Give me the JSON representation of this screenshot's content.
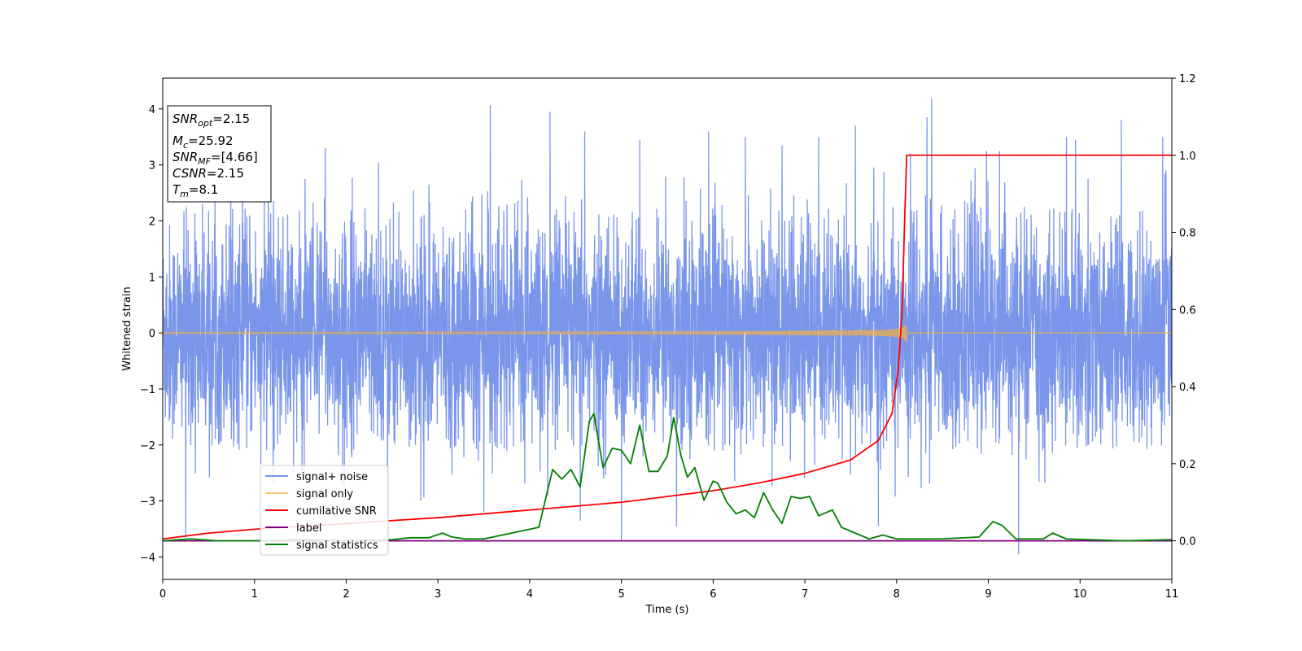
{
  "chart_data": {
    "type": "line",
    "xlabel": "Time (s)",
    "ylabel": "Whitened strain",
    "xlim": [
      0,
      11
    ],
    "ylim": [
      -4.4,
      4.55
    ],
    "ylim_right": [
      -0.1,
      1.2
    ],
    "x_ticks": [
      "0",
      "1",
      "2",
      "3",
      "4",
      "5",
      "6",
      "7",
      "8",
      "9",
      "10",
      "11"
    ],
    "y_ticks": [
      "−4",
      "−3",
      "−2",
      "−1",
      "0",
      "1",
      "2",
      "3",
      "4"
    ],
    "y_ticks_right": [
      "0.0",
      "0.2",
      "0.4",
      "0.6",
      "0.8",
      "1.0",
      "1.2"
    ],
    "grid": false,
    "legend_position": "lower-left",
    "stats_box": {
      "line1_sym": "SNR",
      "line1_sub": "opt",
      "line1_val": "=2.15",
      "line2_sym": "M",
      "line2_sub": "c",
      "line2_val": "=25.92",
      "line3_sym": "SNR",
      "line3_sub": "MF",
      "line3_val": "=[4.66]",
      "line4_sym": "CSNR",
      "line4_val": "=2.15",
      "line5_sym": "T",
      "line5_sub": "m",
      "line5_val": "=8.1"
    },
    "series": [
      {
        "name": "signal+ noise",
        "axis": "left",
        "color": "#4169e1",
        "description_stats": {
          "band_low": -1.75,
          "band_high": 1.9,
          "max_peak": 4.18,
          "min_peak": -3.95
        },
        "peaks": [
          [
            0.25,
            -3.65
          ],
          [
            1.15,
            3.1
          ],
          [
            1.55,
            2.75
          ],
          [
            1.77,
            -3.15
          ],
          [
            1.77,
            3.3
          ],
          [
            2.35,
            3.05
          ],
          [
            2.45,
            -3.3
          ],
          [
            2.9,
            2.65
          ],
          [
            3.5,
            -3.2
          ],
          [
            3.57,
            4.07
          ],
          [
            4.22,
            3.95
          ],
          [
            4.55,
            -3.35
          ],
          [
            4.6,
            3.6
          ],
          [
            5.0,
            -3.7
          ],
          [
            5.2,
            3.45
          ],
          [
            5.6,
            -3.45
          ],
          [
            5.95,
            3.6
          ],
          [
            6.35,
            3.5
          ],
          [
            6.75,
            3.35
          ],
          [
            7.15,
            3.5
          ],
          [
            7.55,
            3.7
          ],
          [
            7.8,
            -3.45
          ],
          [
            8.15,
            3.2
          ],
          [
            8.33,
            3.85
          ],
          [
            8.38,
            4.18
          ],
          [
            8.98,
            3.25
          ],
          [
            9.12,
            3.25
          ],
          [
            9.33,
            -3.95
          ],
          [
            9.85,
            3.5
          ],
          [
            9.95,
            3.45
          ],
          [
            10.45,
            3.8
          ],
          [
            10.9,
            3.5
          ]
        ]
      },
      {
        "name": "signal only",
        "axis": "left",
        "color": "#f5b041",
        "points": [
          [
            0,
            0
          ],
          [
            6.5,
            0.0
          ],
          [
            7.5,
            0.04
          ],
          [
            7.9,
            0.12
          ],
          [
            8.0,
            0.2
          ],
          [
            8.05,
            0.3
          ],
          [
            8.1,
            0.5
          ],
          [
            8.12,
            0
          ]
        ]
      },
      {
        "name": "cumilative SNR",
        "axis": "right",
        "color": "#ff0000",
        "points": [
          [
            0,
            0.005
          ],
          [
            0.5,
            0.02
          ],
          [
            1,
            0.03
          ],
          [
            2,
            0.045
          ],
          [
            3,
            0.06
          ],
          [
            4,
            0.08
          ],
          [
            5,
            0.1
          ],
          [
            6,
            0.13
          ],
          [
            6.5,
            0.15
          ],
          [
            7,
            0.175
          ],
          [
            7.5,
            0.21
          ],
          [
            7.8,
            0.26
          ],
          [
            7.95,
            0.33
          ],
          [
            8.02,
            0.45
          ],
          [
            8.06,
            0.6
          ],
          [
            8.09,
            0.85
          ],
          [
            8.11,
            1.0
          ],
          [
            11,
            1.0
          ]
        ]
      },
      {
        "name": "label",
        "axis": "right",
        "color": "#800080",
        "points": [
          [
            0,
            0.0
          ],
          [
            11,
            0.0
          ]
        ]
      },
      {
        "name": "signal statistics",
        "axis": "right",
        "color": "#008000",
        "points": [
          [
            0,
            0.0
          ],
          [
            0.3,
            0.005
          ],
          [
            0.6,
            0.0
          ],
          [
            1.0,
            0.0
          ],
          [
            1.5,
            0.003
          ],
          [
            2.0,
            0.0
          ],
          [
            2.5,
            0.003
          ],
          [
            2.7,
            0.008
          ],
          [
            2.9,
            0.008
          ],
          [
            3.05,
            0.02
          ],
          [
            3.15,
            0.01
          ],
          [
            3.3,
            0.005
          ],
          [
            3.5,
            0.005
          ],
          [
            3.7,
            0.015
          ],
          [
            4.0,
            0.03
          ],
          [
            4.1,
            0.035
          ],
          [
            4.25,
            0.185
          ],
          [
            4.35,
            0.16
          ],
          [
            4.45,
            0.185
          ],
          [
            4.55,
            0.14
          ],
          [
            4.65,
            0.31
          ],
          [
            4.7,
            0.33
          ],
          [
            4.8,
            0.19
          ],
          [
            4.9,
            0.24
          ],
          [
            5.0,
            0.235
          ],
          [
            5.1,
            0.2
          ],
          [
            5.2,
            0.3
          ],
          [
            5.3,
            0.18
          ],
          [
            5.4,
            0.18
          ],
          [
            5.5,
            0.22
          ],
          [
            5.57,
            0.32
          ],
          [
            5.65,
            0.22
          ],
          [
            5.72,
            0.165
          ],
          [
            5.8,
            0.19
          ],
          [
            5.9,
            0.105
          ],
          [
            6.0,
            0.155
          ],
          [
            6.05,
            0.15
          ],
          [
            6.15,
            0.1
          ],
          [
            6.25,
            0.07
          ],
          [
            6.35,
            0.08
          ],
          [
            6.45,
            0.06
          ],
          [
            6.55,
            0.125
          ],
          [
            6.65,
            0.08
          ],
          [
            6.75,
            0.045
          ],
          [
            6.85,
            0.115
          ],
          [
            6.95,
            0.11
          ],
          [
            7.05,
            0.115
          ],
          [
            7.15,
            0.065
          ],
          [
            7.3,
            0.08
          ],
          [
            7.4,
            0.035
          ],
          [
            7.55,
            0.02
          ],
          [
            7.7,
            0.005
          ],
          [
            7.85,
            0.015
          ],
          [
            8.0,
            0.005
          ],
          [
            8.5,
            0.005
          ],
          [
            8.9,
            0.01
          ],
          [
            9.05,
            0.05
          ],
          [
            9.15,
            0.04
          ],
          [
            9.3,
            0.005
          ],
          [
            9.6,
            0.005
          ],
          [
            9.7,
            0.02
          ],
          [
            9.85,
            0.005
          ],
          [
            10.5,
            0.0
          ],
          [
            11,
            0.003
          ]
        ]
      }
    ]
  }
}
